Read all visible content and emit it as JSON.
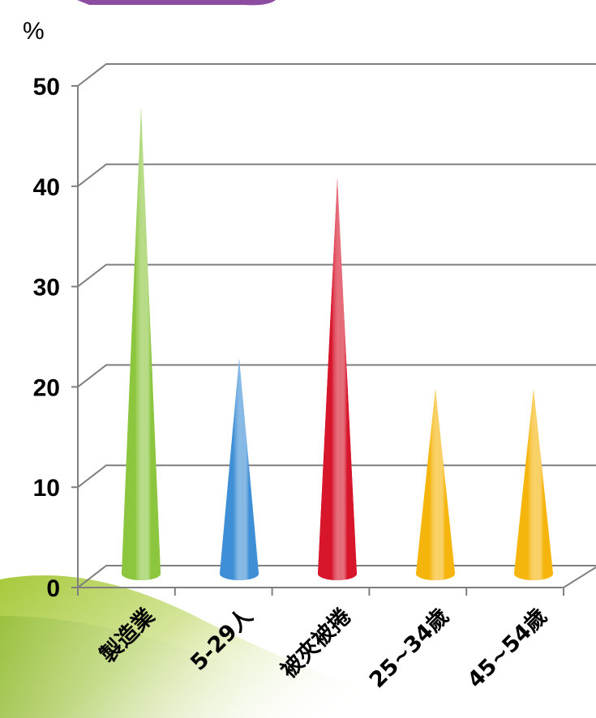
{
  "chart_data": {
    "type": "bar",
    "ylabel": "%",
    "ylim": [
      0,
      50
    ],
    "yticks": [
      "0",
      "10",
      "20",
      "30",
      "40",
      "50"
    ],
    "grid": true,
    "categories": [
      "製造業",
      "5-29人",
      "被夾被捲",
      "25~34歲",
      "45~54歲"
    ],
    "values": [
      47,
      22,
      40,
      19,
      19
    ],
    "colors": [
      "#8cc63f",
      "#3f8fd6",
      "#d7152b",
      "#f5b50c",
      "#f5b50c"
    ]
  }
}
